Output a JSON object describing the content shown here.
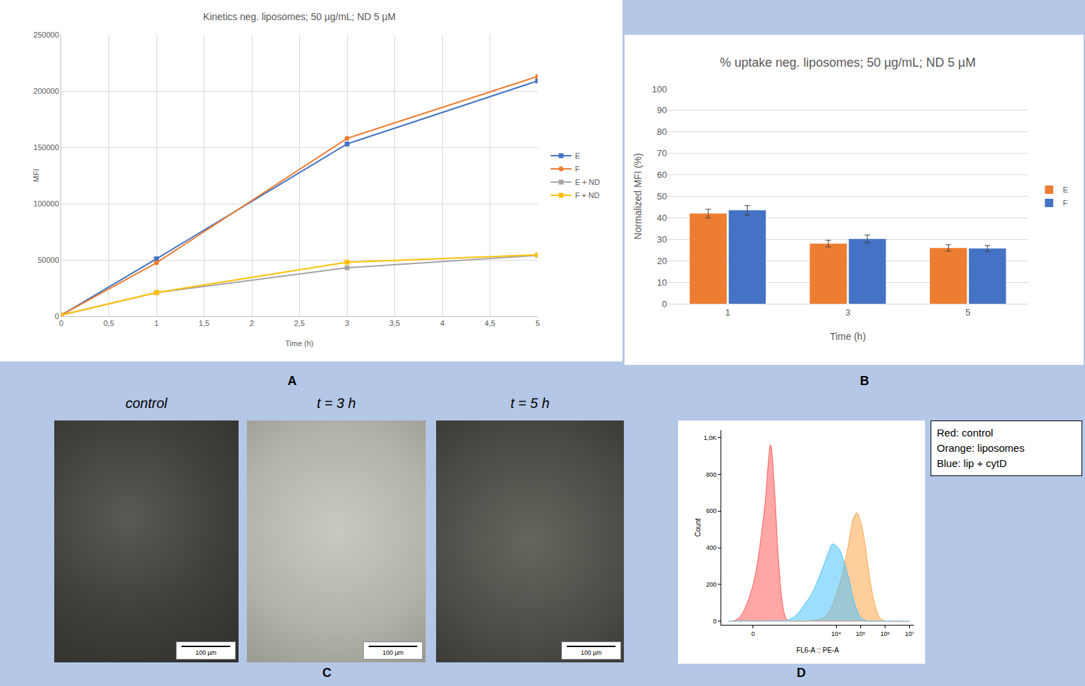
{
  "chart_data": [
    {
      "panel": "A",
      "type": "line",
      "title": "Kinetics neg. liposomes; 50 µg/mL; ND 5 µM",
      "x_label": "Time (h)",
      "y_label": "MFI",
      "x": [
        0,
        1,
        3,
        5
      ],
      "series": [
        {
          "name": "E",
          "color": "#4472c4",
          "marker": "square",
          "values": [
            1000,
            51000,
            153000,
            209000
          ]
        },
        {
          "name": "F",
          "color": "#ed7d31",
          "marker": "circle",
          "values": [
            1000,
            47500,
            158000,
            213000
          ]
        },
        {
          "name": "E + ND",
          "color": "#a5a5a5",
          "marker": "square",
          "values": [
            1000,
            21000,
            43000,
            54000
          ]
        },
        {
          "name": "F + ND",
          "color": "#ffc000",
          "marker": "square",
          "values": [
            1000,
            21000,
            48000,
            54500
          ]
        }
      ],
      "xlim": [
        0,
        5
      ],
      "xticks": [
        0,
        {
          "value": 0.5,
          "label": "0,5"
        },
        1,
        {
          "value": 1.5,
          "label": "1,5"
        },
        2,
        {
          "value": 2.5,
          "label": "2,5"
        },
        3,
        {
          "value": 3.5,
          "label": "3,5"
        },
        4,
        {
          "value": 4.5,
          "label": "4,5"
        },
        5
      ],
      "ylim": [
        0,
        250000
      ],
      "yticks": [
        0,
        50000,
        100000,
        150000,
        200000,
        250000
      ],
      "grid": true,
      "legend": "right"
    },
    {
      "panel": "B",
      "type": "bar",
      "title": "% uptake neg. liposomes; 50 µg/mL; ND 5 µM",
      "x_label": "Time (h)",
      "y_label": "Normalized MFI (%)",
      "categories": [
        "1",
        "3",
        "5"
      ],
      "series": [
        {
          "name": "E",
          "color": "#ed7d31",
          "values": [
            42,
            28,
            26
          ],
          "errors": [
            2,
            1.5,
            1.5
          ]
        },
        {
          "name": "F",
          "color": "#4472c4",
          "values": [
            43.5,
            30.2,
            25.7
          ],
          "errors": [
            2.2,
            1.8,
            1.4
          ]
        }
      ],
      "ylim": [
        0,
        100
      ],
      "yticks": [
        0,
        10,
        20,
        30,
        40,
        50,
        60,
        70,
        80,
        90,
        100
      ],
      "grid": "y",
      "legend": "right"
    },
    {
      "panel": "D",
      "type": "area",
      "x_label": "FL6-A :: PE-A",
      "y_label": "Count",
      "x": [
        -40,
        -20,
        -10,
        0,
        10,
        20,
        30,
        40,
        60,
        80,
        100,
        150,
        200,
        300,
        500,
        1000,
        2000,
        3000,
        5000,
        7000,
        10000,
        15000,
        20000,
        30000,
        40000,
        50000,
        70000,
        100000,
        150000,
        200000,
        300000,
        500000,
        700000,
        1000000,
        2000000,
        5000000,
        10000000
      ],
      "series": [
        {
          "name": "Red: control",
          "color": "#ff5c5c",
          "values": [
            0,
            5,
            40,
            200,
            600,
            960,
            700,
            400,
            120,
            30,
            5,
            0,
            0,
            0,
            0,
            0,
            0,
            0,
            0,
            0,
            0,
            0,
            0,
            0,
            0,
            0,
            0,
            0,
            0,
            0,
            0,
            0,
            0,
            0,
            0,
            0,
            0
          ]
        },
        {
          "name": "Orange: liposomes",
          "color": "#ffa64d",
          "values": [
            0,
            0,
            0,
            0,
            0,
            0,
            0,
            0,
            0,
            0,
            0,
            0,
            0,
            0,
            0,
            3,
            10,
            20,
            50,
            90,
            150,
            220,
            290,
            400,
            500,
            560,
            590,
            540,
            420,
            300,
            150,
            40,
            10,
            2,
            0,
            0,
            0
          ]
        },
        {
          "name": "Blue: lip + cytD",
          "color": "#4dc3ff",
          "values": [
            0,
            0,
            0,
            0,
            0,
            0,
            0,
            0,
            0,
            2,
            5,
            15,
            25,
            50,
            90,
            150,
            240,
            300,
            380,
            420,
            410,
            380,
            330,
            250,
            180,
            120,
            60,
            20,
            5,
            0,
            0,
            0,
            0,
            0,
            0,
            0,
            0
          ]
        }
      ],
      "log": "x",
      "xlim": [
        -80,
        15000000
      ],
      "xticks": [
        0,
        {
          "value": 10000,
          "label": "10⁴"
        },
        {
          "value": 100000,
          "label": "10⁵"
        },
        {
          "value": 1000000,
          "label": "10⁶"
        },
        {
          "value": 10000000,
          "label": "10⁷"
        }
      ],
      "ylim": [
        -20,
        1040
      ],
      "yticks": [
        0,
        200,
        400,
        600,
        800,
        {
          "value": 1000,
          "label": "1,0K"
        }
      ],
      "grid": false,
      "legend": "right"
    }
  ],
  "micrographs": {
    "panel": "C",
    "images": [
      {
        "title": "control",
        "scale_bar": "100 µm"
      },
      {
        "title": "t = 3 h",
        "scale_bar": "100 µm"
      },
      {
        "title": "t = 5 h",
        "scale_bar": "100 µm"
      }
    ]
  }
}
